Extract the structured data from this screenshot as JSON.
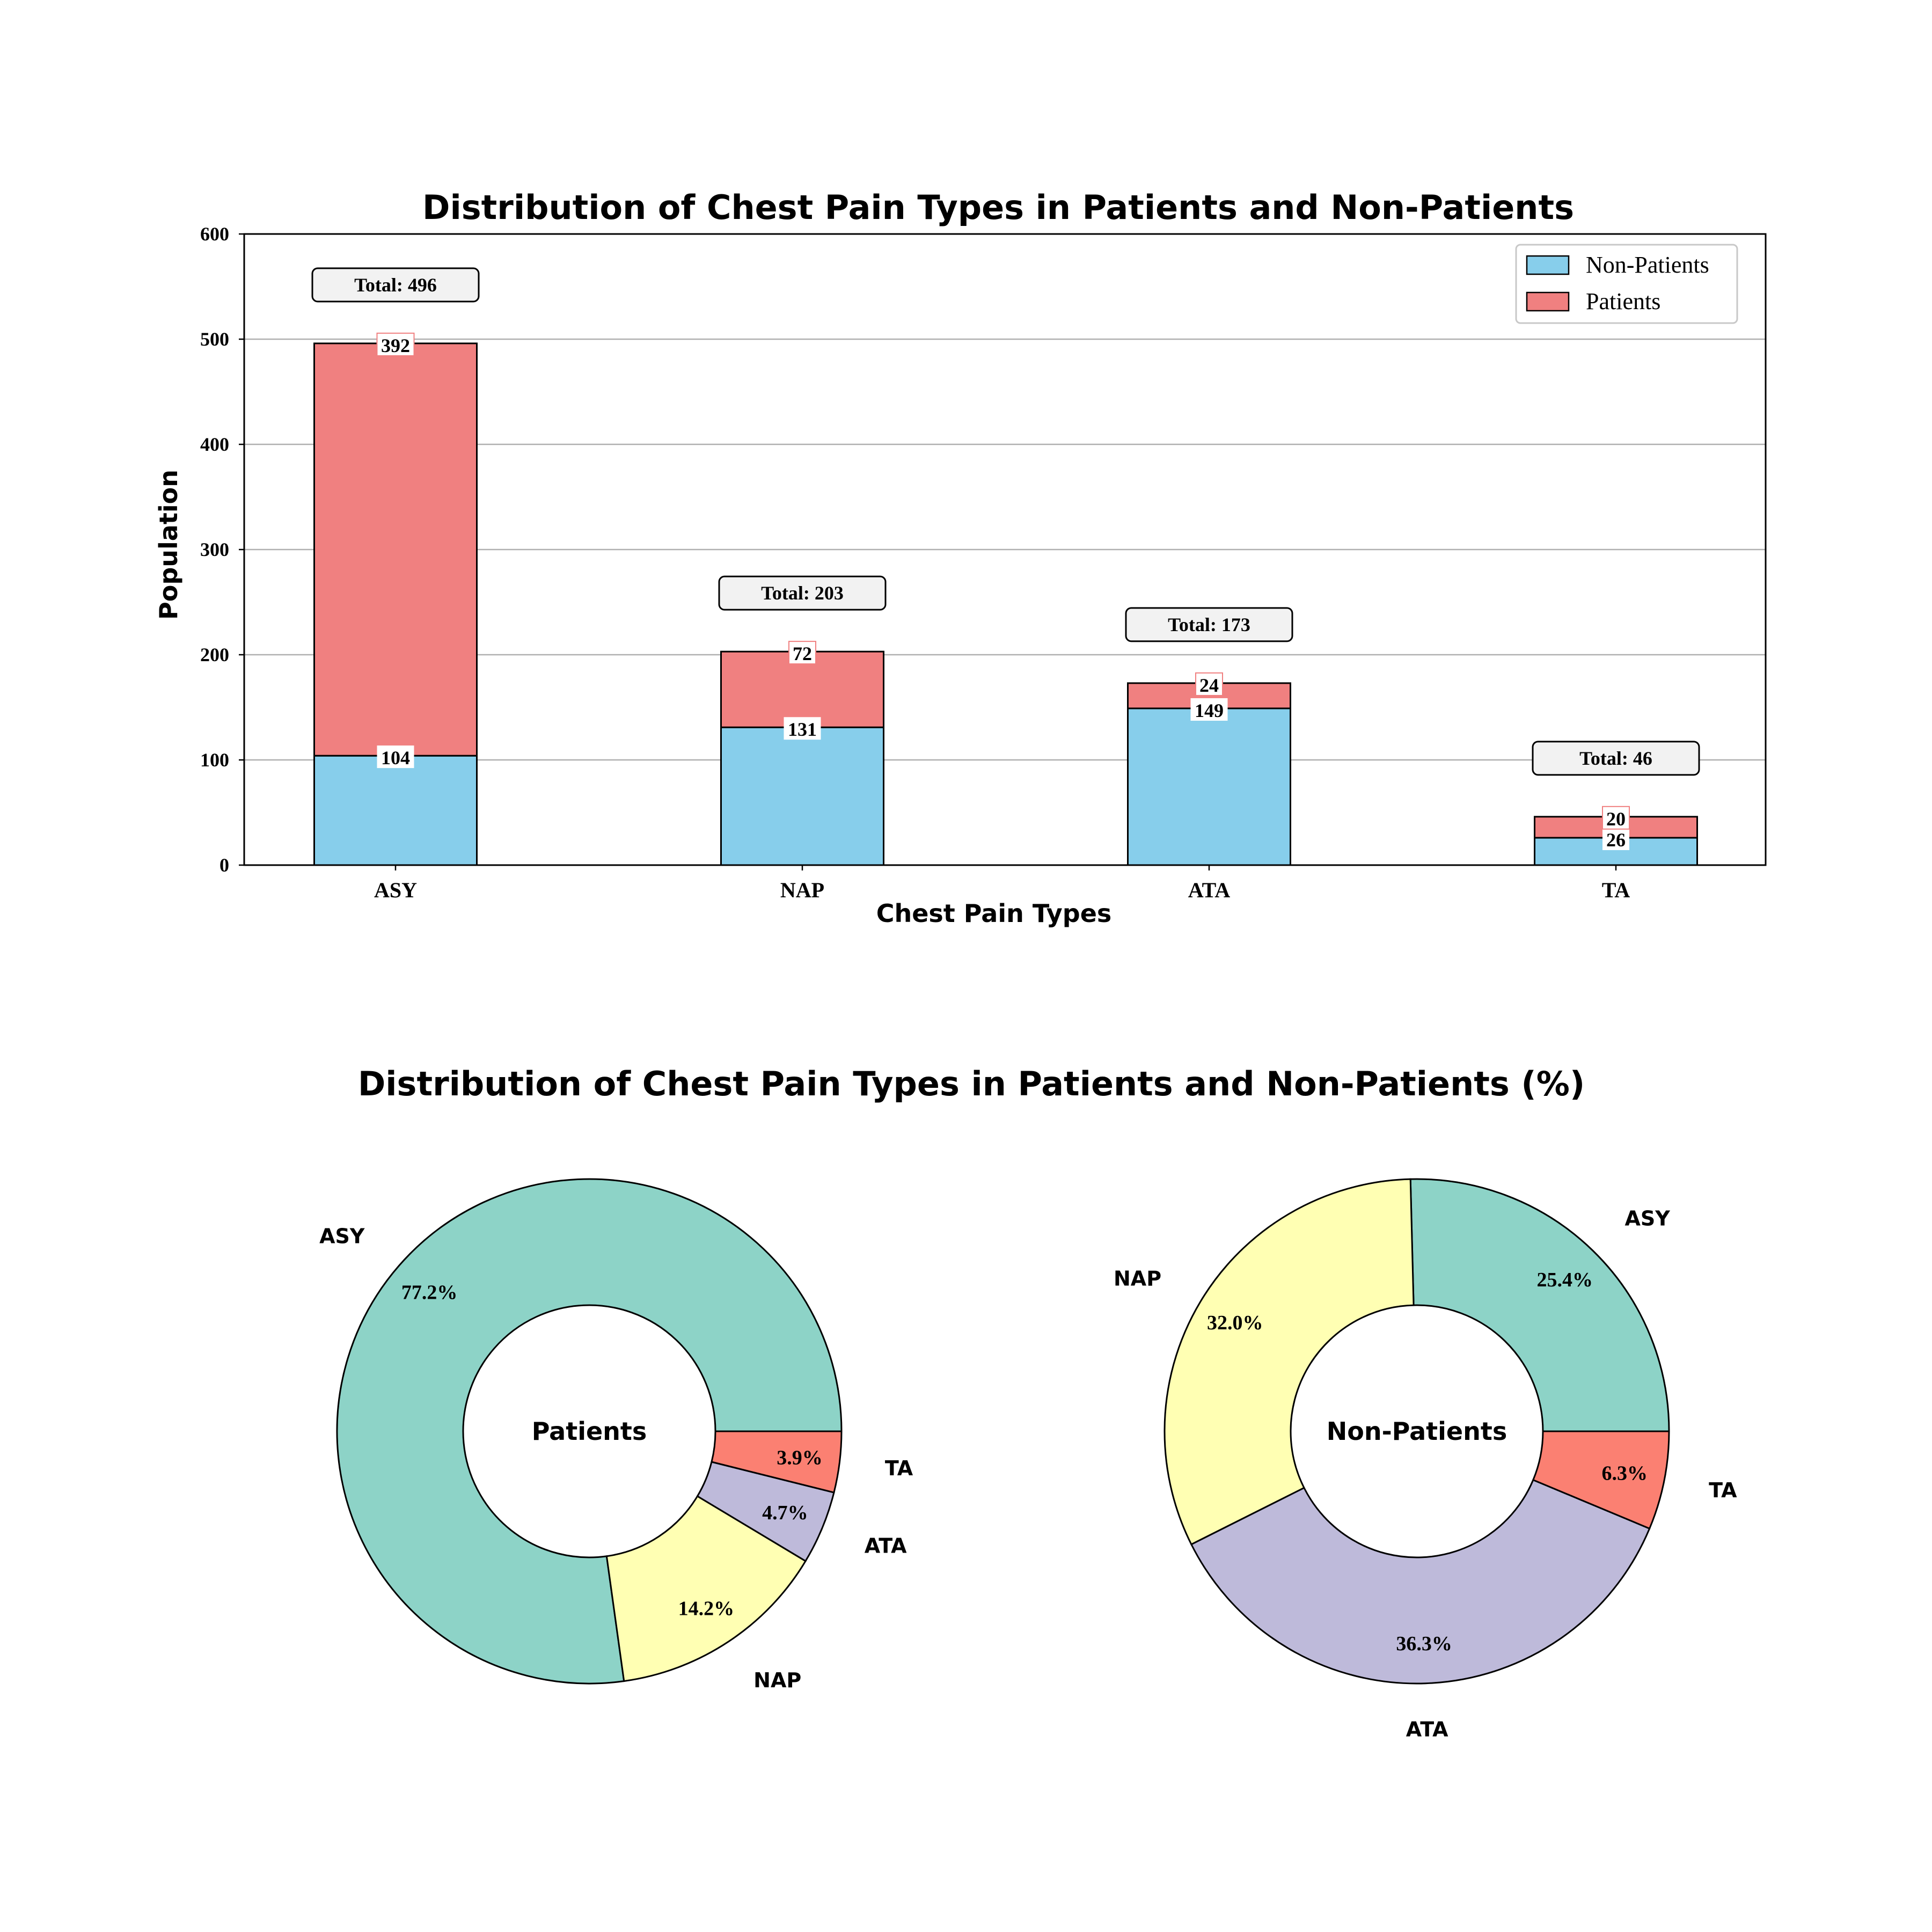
{
  "colors": {
    "non_patients": "#87CEEB",
    "patients": "#F08080",
    "grid": "#b0b0b0",
    "total_box_fill": "#f2f2f2",
    "pie": {
      "ASY": "#8DD3C7",
      "NAP": "#FFFFB3",
      "ATA": "#BEBADA",
      "TA": "#FB8072"
    }
  },
  "chart_data": [
    {
      "type": "bar",
      "stacked": true,
      "title": "Distribution of Chest Pain Types in Patients and Non-Patients",
      "xlabel": "Chest Pain Types",
      "ylabel": "Population",
      "categories": [
        "ASY",
        "NAP",
        "ATA",
        "TA"
      ],
      "ylim": [
        0,
        600
      ],
      "yticks": [
        "0",
        "100",
        "200",
        "300",
        "400",
        "500",
        "600"
      ],
      "grid": "y",
      "legend_position": "top-right",
      "series": [
        {
          "name": "Non-Patients",
          "values": [
            104,
            131,
            149,
            26
          ],
          "labels": [
            "104",
            "131",
            "149",
            "26"
          ]
        },
        {
          "name": "Patients",
          "values": [
            392,
            72,
            24,
            20
          ],
          "labels": [
            "392",
            "72",
            "24",
            "20"
          ]
        }
      ],
      "totals": [
        "Total: 496",
        "Total: 203",
        "Total: 173",
        "Total: 46"
      ]
    },
    {
      "type": "pie",
      "donut": true,
      "center_label": "Patients",
      "categories": [
        "ASY",
        "NAP",
        "ATA",
        "TA"
      ],
      "values": [
        77.2,
        14.2,
        4.7,
        3.9
      ],
      "percent_labels": [
        "77.2%",
        "14.2%",
        "4.7%",
        "3.9%"
      ]
    },
    {
      "type": "pie",
      "donut": true,
      "center_label": "Non-Patients",
      "categories": [
        "ASY",
        "NAP",
        "ATA",
        "TA"
      ],
      "values": [
        25.4,
        32.0,
        36.3,
        6.3
      ],
      "percent_labels": [
        "25.4%",
        "32.0%",
        "36.3%",
        "6.3%"
      ]
    }
  ],
  "pie_section_title": "Distribution of Chest Pain Types in Patients and Non-Patients (%)"
}
